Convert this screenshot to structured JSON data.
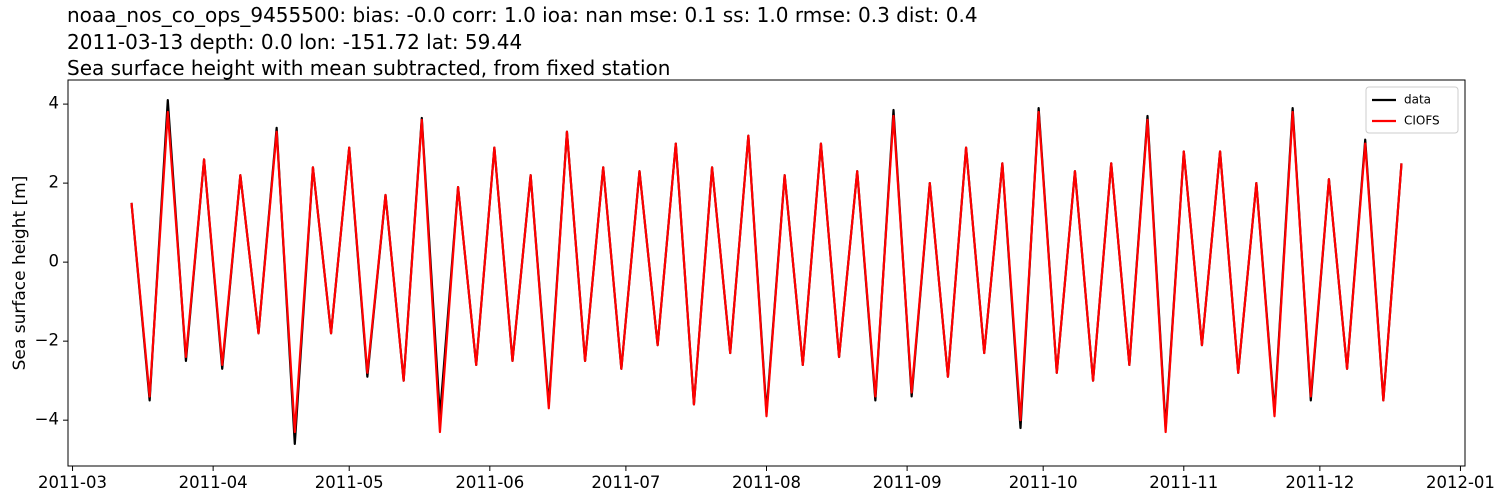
{
  "chart_data": {
    "type": "line",
    "title_lines": [
      "noaa_nos_co_ops_9455500: bias: -0.0  corr: 1.0  ioa: nan  mse: 0.1  ss: 1.0  rmse: 0.3  dist: 0.4",
      "2011-03-13 depth: 0.0 lon: -151.72 lat: 59.44",
      "Sea surface height with mean subtracted, from fixed station"
    ],
    "ylabel": "Sea surface height [m]",
    "x": [
      "2011-03-14",
      "2011-03-18",
      "2011-03-22",
      "2011-03-26",
      "2011-03-30",
      "2011-04-03",
      "2011-04-07",
      "2011-04-11",
      "2011-04-15",
      "2011-04-19",
      "2011-04-23",
      "2011-04-27",
      "2011-05-01",
      "2011-05-05",
      "2011-05-09",
      "2011-05-13",
      "2011-05-17",
      "2011-05-21",
      "2011-05-25",
      "2011-05-29",
      "2011-06-02",
      "2011-06-06",
      "2011-06-10",
      "2011-06-14",
      "2011-06-18",
      "2011-06-22",
      "2011-06-26",
      "2011-06-30",
      "2011-07-04",
      "2011-07-08",
      "2011-07-12",
      "2011-07-16",
      "2011-07-20",
      "2011-07-24",
      "2011-07-28",
      "2011-08-01",
      "2011-08-05",
      "2011-08-09",
      "2011-08-13",
      "2011-08-17",
      "2011-08-21",
      "2011-08-25",
      "2011-08-29",
      "2011-09-02",
      "2011-09-06",
      "2011-09-10",
      "2011-09-14",
      "2011-09-18",
      "2011-09-22",
      "2011-09-26",
      "2011-09-30",
      "2011-10-04",
      "2011-10-08",
      "2011-10-12",
      "2011-10-16",
      "2011-10-20",
      "2011-10-24",
      "2011-10-28",
      "2011-11-01",
      "2011-11-05",
      "2011-11-09",
      "2011-11-13",
      "2011-11-17",
      "2011-11-21",
      "2011-11-25",
      "2011-11-29",
      "2011-12-03",
      "2011-12-07",
      "2011-12-11",
      "2011-12-15",
      "2011-12-19"
    ],
    "series": [
      {
        "name": "data",
        "color": "#000000",
        "values": [
          1.5,
          -3.5,
          4.1,
          -2.5,
          2.6,
          -2.7,
          2.2,
          -1.8,
          3.4,
          -4.6,
          2.4,
          -1.8,
          2.9,
          -2.9,
          1.7,
          -3.0,
          3.65,
          -3.9,
          1.9,
          -2.6,
          2.9,
          -2.5,
          2.2,
          -3.6,
          3.3,
          -2.5,
          2.4,
          -2.7,
          2.3,
          -2.1,
          3.0,
          -3.6,
          2.4,
          -2.3,
          3.2,
          -3.8,
          2.2,
          -2.6,
          3.0,
          -2.4,
          2.3,
          -3.5,
          3.85,
          -3.4,
          2.0,
          -2.9,
          2.9,
          -2.3,
          2.5,
          -4.2,
          3.9,
          -2.8,
          2.3,
          -3.0,
          2.5,
          -2.6,
          3.7,
          -4.2,
          2.8,
          -2.1,
          2.8,
          -2.8,
          2.0,
          -3.8,
          3.9,
          -3.5,
          2.1,
          -2.7,
          3.1,
          -3.5,
          2.5
        ]
      },
      {
        "name": "CIOFS",
        "color": "#ff0000",
        "values": [
          1.5,
          -3.4,
          3.8,
          -2.4,
          2.6,
          -2.6,
          2.2,
          -1.8,
          3.3,
          -4.3,
          2.4,
          -1.8,
          2.9,
          -2.8,
          1.7,
          -3.0,
          3.6,
          -4.3,
          1.9,
          -2.6,
          2.9,
          -2.5,
          2.2,
          -3.7,
          3.3,
          -2.5,
          2.4,
          -2.7,
          2.3,
          -2.1,
          3.0,
          -3.6,
          2.4,
          -2.3,
          3.2,
          -3.9,
          2.2,
          -2.6,
          3.0,
          -2.4,
          2.3,
          -3.4,
          3.7,
          -3.3,
          2.0,
          -2.9,
          2.9,
          -2.3,
          2.5,
          -4.0,
          3.8,
          -2.8,
          2.3,
          -3.0,
          2.5,
          -2.6,
          3.6,
          -4.3,
          2.8,
          -2.1,
          2.8,
          -2.8,
          2.0,
          -3.9,
          3.8,
          -3.4,
          2.1,
          -2.7,
          3.0,
          -3.5,
          2.5
        ]
      }
    ],
    "xlim": [
      "2011-02-28",
      "2012-01-02"
    ],
    "xticks": [
      {
        "value": "2011-03-01",
        "label": "2011-03"
      },
      {
        "value": "2011-04-01",
        "label": "2011-04"
      },
      {
        "value": "2011-05-01",
        "label": "2011-05"
      },
      {
        "value": "2011-06-01",
        "label": "2011-06"
      },
      {
        "value": "2011-07-01",
        "label": "2011-07"
      },
      {
        "value": "2011-08-01",
        "label": "2011-08"
      },
      {
        "value": "2011-09-01",
        "label": "2011-09"
      },
      {
        "value": "2011-10-01",
        "label": "2011-10"
      },
      {
        "value": "2011-11-01",
        "label": "2011-11"
      },
      {
        "value": "2011-12-01",
        "label": "2011-12"
      },
      {
        "value": "2012-01-01",
        "label": "2012-01"
      }
    ],
    "ylim": [
      -5.16,
      4.61
    ],
    "yticks": [
      {
        "value": -4,
        "label": "−4"
      },
      {
        "value": -2,
        "label": "−2"
      },
      0,
      2,
      4
    ],
    "legend": "upper right",
    "grid": false
  }
}
